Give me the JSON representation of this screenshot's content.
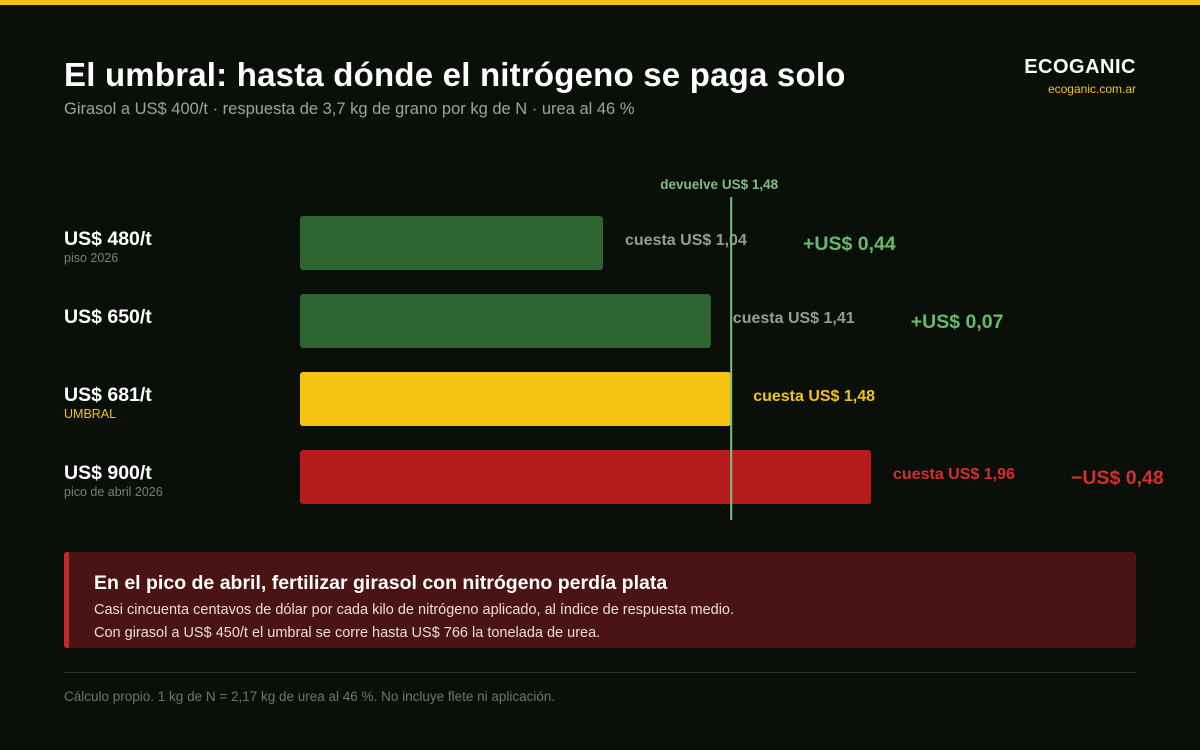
{
  "header": {
    "title": "El umbral: hasta dónde el nitrógeno se paga solo",
    "subtitle": "Girasol a US$ 400/t · respuesta de 3,7 kg de grano por kg de N · urea al 46 %"
  },
  "brand": {
    "name": "ECOGANIC",
    "url": "ecoganic.com.ar"
  },
  "chart_data": {
    "type": "bar",
    "orientation": "horizontal",
    "categories": [
      "US$ 480/t",
      "US$ 650/t",
      "US$ 681/t",
      "US$ 900/t"
    ],
    "sublabels": [
      "piso 2026",
      "",
      "UMBRAL",
      "pico de abril 2026"
    ],
    "values": [
      1.04,
      1.41,
      1.48,
      1.96
    ],
    "value_labels": [
      "cuesta US$ 1,04",
      "cuesta US$ 1,41",
      "cuesta US$ 1,48",
      "cuesta US$ 1,96"
    ],
    "margins": [
      "+US$ 0,44",
      "+US$ 0,07",
      "",
      "−US$ 0,48"
    ],
    "statuses": [
      "gain",
      "gain",
      "threshold",
      "loss"
    ],
    "reference": {
      "value": 1.48,
      "label": "devuelve US$ 1,48"
    },
    "xlim": [
      0,
      2.0
    ],
    "colors": {
      "gain": "#2e6430",
      "threshold": "#f5c211",
      "loss": "#b71c1c",
      "gain_text": "#66bb6a",
      "threshold_text": "#f5c211",
      "loss_text": "#d32f2f",
      "neutral_text": "#9a9a9a",
      "reference": "#7cbf82"
    }
  },
  "callout": {
    "title": "En el pico de abril, fertilizar girasol con nitrógeno perdía plata",
    "line1": "Casi cincuenta centavos de dólar por cada kilo de nitrógeno aplicado, al índice de respuesta medio.",
    "line2": "Con girasol a US$ 450/t el umbral se corre hasta US$ 766 la tonelada de urea."
  },
  "footnote": "Cálculo propio. 1 kg de N = 2,17 kg de urea al 46 %. No incluye flete ni aplicación."
}
